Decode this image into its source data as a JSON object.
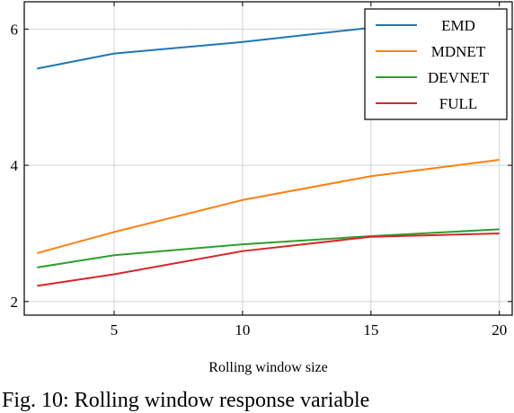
{
  "chart_data": {
    "type": "line",
    "x": [
      2,
      5,
      10,
      15,
      20
    ],
    "xlabel": "Rolling window size",
    "ylabel": "",
    "xlim": [
      1.5,
      20.5
    ],
    "ylim": [
      1.8,
      6.4
    ],
    "xticks": [
      5,
      10,
      15,
      20
    ],
    "yticks": [
      2,
      4,
      6
    ],
    "grid": true,
    "legend_position": "top-right",
    "series": [
      {
        "name": "EMD",
        "color": "#1f77b4",
        "values": [
          5.42,
          5.64,
          5.81,
          6.02,
          6.1
        ]
      },
      {
        "name": "MDNET",
        "color": "#ff7f0e",
        "values": [
          2.71,
          3.02,
          3.49,
          3.84,
          4.08
        ]
      },
      {
        "name": "DEVNET",
        "color": "#2ca02c",
        "values": [
          2.5,
          2.68,
          2.84,
          2.96,
          3.06
        ]
      },
      {
        "name": "FULL",
        "color": "#d62728",
        "values": [
          2.23,
          2.4,
          2.74,
          2.95,
          3.0
        ]
      }
    ]
  },
  "caption": "Fig. 10: Rolling window response variable"
}
